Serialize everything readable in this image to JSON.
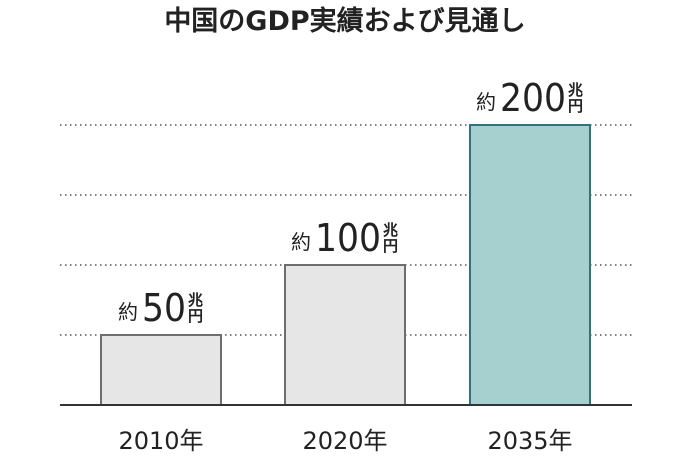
{
  "chart_data": {
    "type": "bar",
    "title": "中国のGDP実績および見通し",
    "xlabel": "",
    "ylabel": "",
    "categories": [
      "2010年",
      "2020年",
      "2035年"
    ],
    "values": [
      50,
      100,
      200
    ],
    "data_labels": [
      {
        "prefix": "約",
        "value": "50",
        "unit_top": "兆",
        "unit_bottom": "円"
      },
      {
        "prefix": "約",
        "value": "100",
        "unit_top": "兆",
        "unit_bottom": "円"
      },
      {
        "prefix": "約",
        "value": "200",
        "unit_top": "兆",
        "unit_bottom": "円"
      }
    ],
    "ylim": [
      0,
      200
    ],
    "grid_values": [
      50,
      100,
      150,
      200
    ],
    "grid": true,
    "grid_style": "dotted",
    "legend": "none",
    "colors": {
      "default_bar": "#e6e6e6",
      "default_border": "#6e6e6e",
      "highlight_bar": "#a6d0d0",
      "highlight_border": "#2f7478",
      "highlight_index": 2
    }
  }
}
